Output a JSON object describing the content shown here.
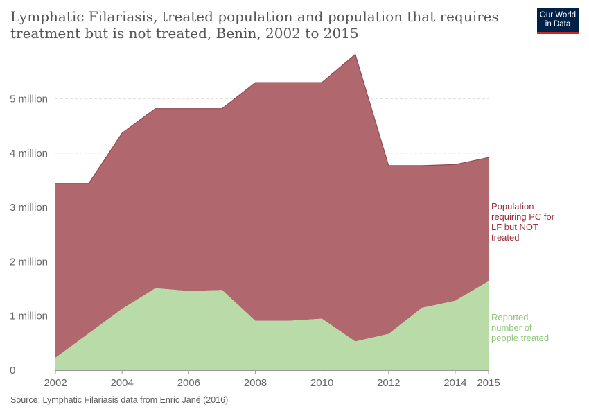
{
  "header": {
    "title": "Lymphatic Filariasis, treated population and population that requires treatment but is not treated, Benin, 2002 to 2015",
    "logo_line1": "Our World",
    "logo_line2": "in Data"
  },
  "footer": {
    "source": "Source: Lymphatic Filariasis data from Enric Jané (2016)"
  },
  "colors": {
    "not_treated": "#b0676d",
    "not_treated_line": "#8f4b51",
    "treated": "#b9dba8",
    "not_treated_label": "#9a2e38",
    "treated_label": "#8fc876",
    "grid": "#dddddd",
    "axis_text": "#666666"
  },
  "chart_data": {
    "type": "area",
    "stacked": true,
    "x": [
      2002,
      2003,
      2004,
      2005,
      2006,
      2007,
      2008,
      2009,
      2010,
      2011,
      2012,
      2013,
      2014,
      2015
    ],
    "xticks": [
      "2002",
      "2004",
      "2006",
      "2008",
      "2010",
      "2012",
      "2014",
      "2015"
    ],
    "ylim": [
      0,
      5800000
    ],
    "yticks": [
      {
        "value": 0,
        "label": "0"
      },
      {
        "value": 1000000,
        "label": "1 million"
      },
      {
        "value": 2000000,
        "label": "2 million"
      },
      {
        "value": 3000000,
        "label": "3 million"
      },
      {
        "value": 4000000,
        "label": "4 million"
      },
      {
        "value": 5000000,
        "label": "5 million"
      }
    ],
    "grid": "horizontal-dashed",
    "series": [
      {
        "name": "Reported number of people treated",
        "label_lines": [
          "Reported",
          "number of",
          "people treated"
        ],
        "values": [
          230000,
          680000,
          1130000,
          1510000,
          1460000,
          1480000,
          910000,
          910000,
          950000,
          530000,
          670000,
          1150000,
          1280000,
          1640000
        ]
      },
      {
        "name": "Population requiring PC for LF but NOT treated",
        "label_lines": [
          "Population",
          "requiring PC for",
          "LF but NOT",
          "treated"
        ],
        "values": [
          3210000,
          2760000,
          3240000,
          3310000,
          3360000,
          3340000,
          4390000,
          4390000,
          4350000,
          5290000,
          3100000,
          2620000,
          2510000,
          2280000
        ]
      }
    ]
  }
}
